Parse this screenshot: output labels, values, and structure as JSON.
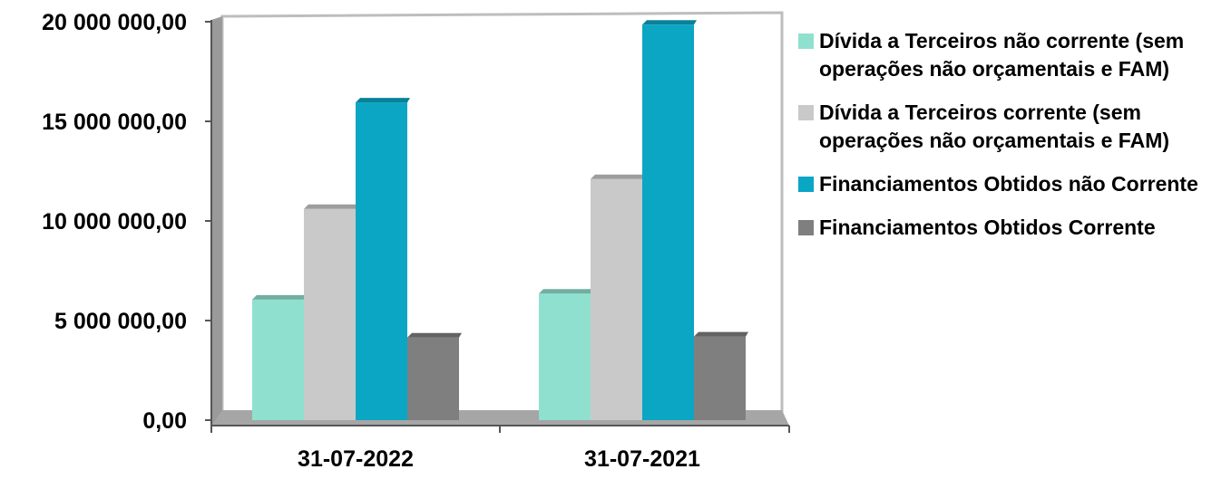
{
  "chart_data": {
    "type": "bar",
    "categories": [
      "31-07-2022",
      "31-07-2021"
    ],
    "series": [
      {
        "name": "Dívida a Terceiros não corrente (sem operações não orçamentais e FAM)",
        "color": "#8fe0cf",
        "values": [
          6050000,
          6350000
        ]
      },
      {
        "name": "Dívida a Terceiros corrente (sem operações não orçamentais e FAM)",
        "color": "#c9c9c9",
        "values": [
          10600000,
          12100000
        ]
      },
      {
        "name": "Financiamentos Obtidos não Corrente",
        "color": "#0aa6c4",
        "values": [
          15950000,
          19850000
        ]
      },
      {
        "name": "Financiamentos Obtidos  Corrente",
        "color": "#7f7f7f",
        "values": [
          4150000,
          4200000
        ]
      }
    ],
    "yticks": [
      "0,00",
      "5 000 000,00",
      "10 000 000,00",
      "15 000 000,00",
      "20 000 000,00"
    ],
    "ylim": [
      0,
      20000000
    ],
    "grid": false,
    "legend_position": "right",
    "title": "",
    "xlabel": "",
    "ylabel": ""
  }
}
